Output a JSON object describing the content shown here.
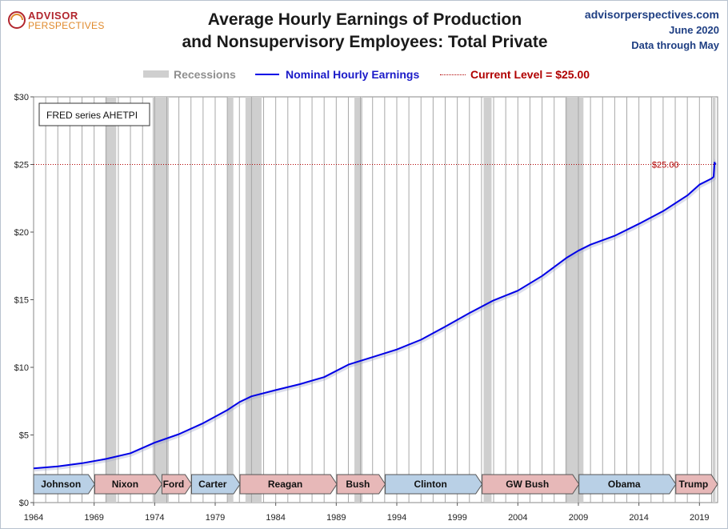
{
  "header": {
    "logo_top": "ADVISOR",
    "logo_bottom": "PERSPECTIVES",
    "title_line1": "Average Hourly Earnings of Production",
    "title_line2": "and Nonsupervisory Employees: Total Private",
    "site": "advisorperspectives.com",
    "date": "June 2020",
    "data_through": "Data through May"
  },
  "legend": {
    "recessions": "Recessions",
    "series": "Nominal Hourly Earnings",
    "current": "Current Level = $25.00"
  },
  "colors": {
    "line": "#0000e6",
    "recession": "#cfcfcf",
    "current": "#b00000",
    "gridline": "#a8a8a8",
    "dem": "#b9d0e6",
    "rep": "#e7b8b8"
  },
  "chart_data": {
    "type": "line",
    "title": "Average Hourly Earnings of Production and Nonsupervisory Employees: Total Private",
    "note": "FRED series AHETPI",
    "xlim": [
      1964,
      2020.5
    ],
    "ylim": [
      0,
      30
    ],
    "x_ticks": [
      "1964",
      "1969",
      "1974",
      "1979",
      "1984",
      "1989",
      "1994",
      "1999",
      "2004",
      "2009",
      "2014",
      "2019"
    ],
    "y_ticks": [
      "$0",
      "$5",
      "$10",
      "$15",
      "$20",
      "$25",
      "$30"
    ],
    "grid": "vertical yearly gridlines",
    "current_level": {
      "value": 25.0,
      "label": "$25.00"
    },
    "series": [
      {
        "name": "Nominal Hourly Earnings",
        "x": [
          1964,
          1966,
          1968,
          1970,
          1972,
          1974,
          1976,
          1978,
          1980,
          1981,
          1982,
          1984,
          1986,
          1988,
          1990,
          1992,
          1994,
          1996,
          1998,
          2000,
          2002,
          2004,
          2006,
          2008,
          2009,
          2010,
          2012,
          2014,
          2016,
          2018,
          2019,
          2020.0,
          2020.17,
          2020.25,
          2020.33
        ],
        "y": [
          2.53,
          2.68,
          2.91,
          3.23,
          3.65,
          4.43,
          5.06,
          5.87,
          6.84,
          7.43,
          7.86,
          8.32,
          8.76,
          9.28,
          10.2,
          10.76,
          11.32,
          12.04,
          13.01,
          14.02,
          14.95,
          15.67,
          16.76,
          18.08,
          18.63,
          19.07,
          19.73,
          20.61,
          21.55,
          22.71,
          23.51,
          23.96,
          24.09,
          25.14,
          25.0
        ]
      }
    ],
    "recessions": [
      [
        1969.92,
        1970.83
      ],
      [
        1973.83,
        1975.17
      ],
      [
        1980.0,
        1980.5
      ],
      [
        1981.5,
        1982.83
      ],
      [
        1990.5,
        1991.17
      ],
      [
        2001.17,
        2001.83
      ],
      [
        2007.92,
        2009.42
      ],
      [
        2020.08,
        2020.33
      ]
    ],
    "presidents": [
      {
        "name": "Johnson",
        "party": "D",
        "start": 1964.0,
        "end": 1969.05
      },
      {
        "name": "Nixon",
        "party": "R",
        "start": 1969.05,
        "end": 1974.6
      },
      {
        "name": "Ford",
        "party": "R",
        "start": 1974.6,
        "end": 1977.05
      },
      {
        "name": "Carter",
        "party": "D",
        "start": 1977.05,
        "end": 1981.05
      },
      {
        "name": "Reagan",
        "party": "R",
        "start": 1981.05,
        "end": 1989.05
      },
      {
        "name": "Bush",
        "party": "R",
        "start": 1989.05,
        "end": 1993.05
      },
      {
        "name": "Clinton",
        "party": "D",
        "start": 1993.05,
        "end": 2001.05
      },
      {
        "name": "GW Bush",
        "party": "R",
        "start": 2001.05,
        "end": 2009.05
      },
      {
        "name": "Obama",
        "party": "D",
        "start": 2009.05,
        "end": 2017.05
      },
      {
        "name": "Trump",
        "party": "R",
        "start": 2017.05,
        "end": 2020.5
      }
    ]
  }
}
